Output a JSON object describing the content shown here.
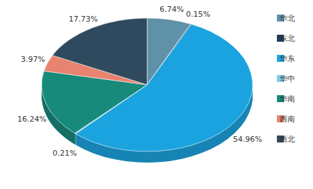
{
  "chart_data": {
    "type": "pie",
    "categories": [
      "华北",
      "东北",
      "华东",
      "华中",
      "华南",
      "西南",
      "西北"
    ],
    "values": [
      6.74,
      0.15,
      54.96,
      0.21,
      16.24,
      3.97,
      17.73
    ],
    "value_labels": [
      "6.74%",
      "0.15%",
      "54.96%",
      "0.21%",
      "16.24%",
      "3.97%",
      "17.73%"
    ],
    "colors": [
      "#5f91a8",
      "#1d3a56",
      "#1ba3df",
      "#7fcbea",
      "#178a7c",
      "#e8836f",
      "#2f4a5e"
    ],
    "data_labels": true,
    "legend": "right"
  }
}
